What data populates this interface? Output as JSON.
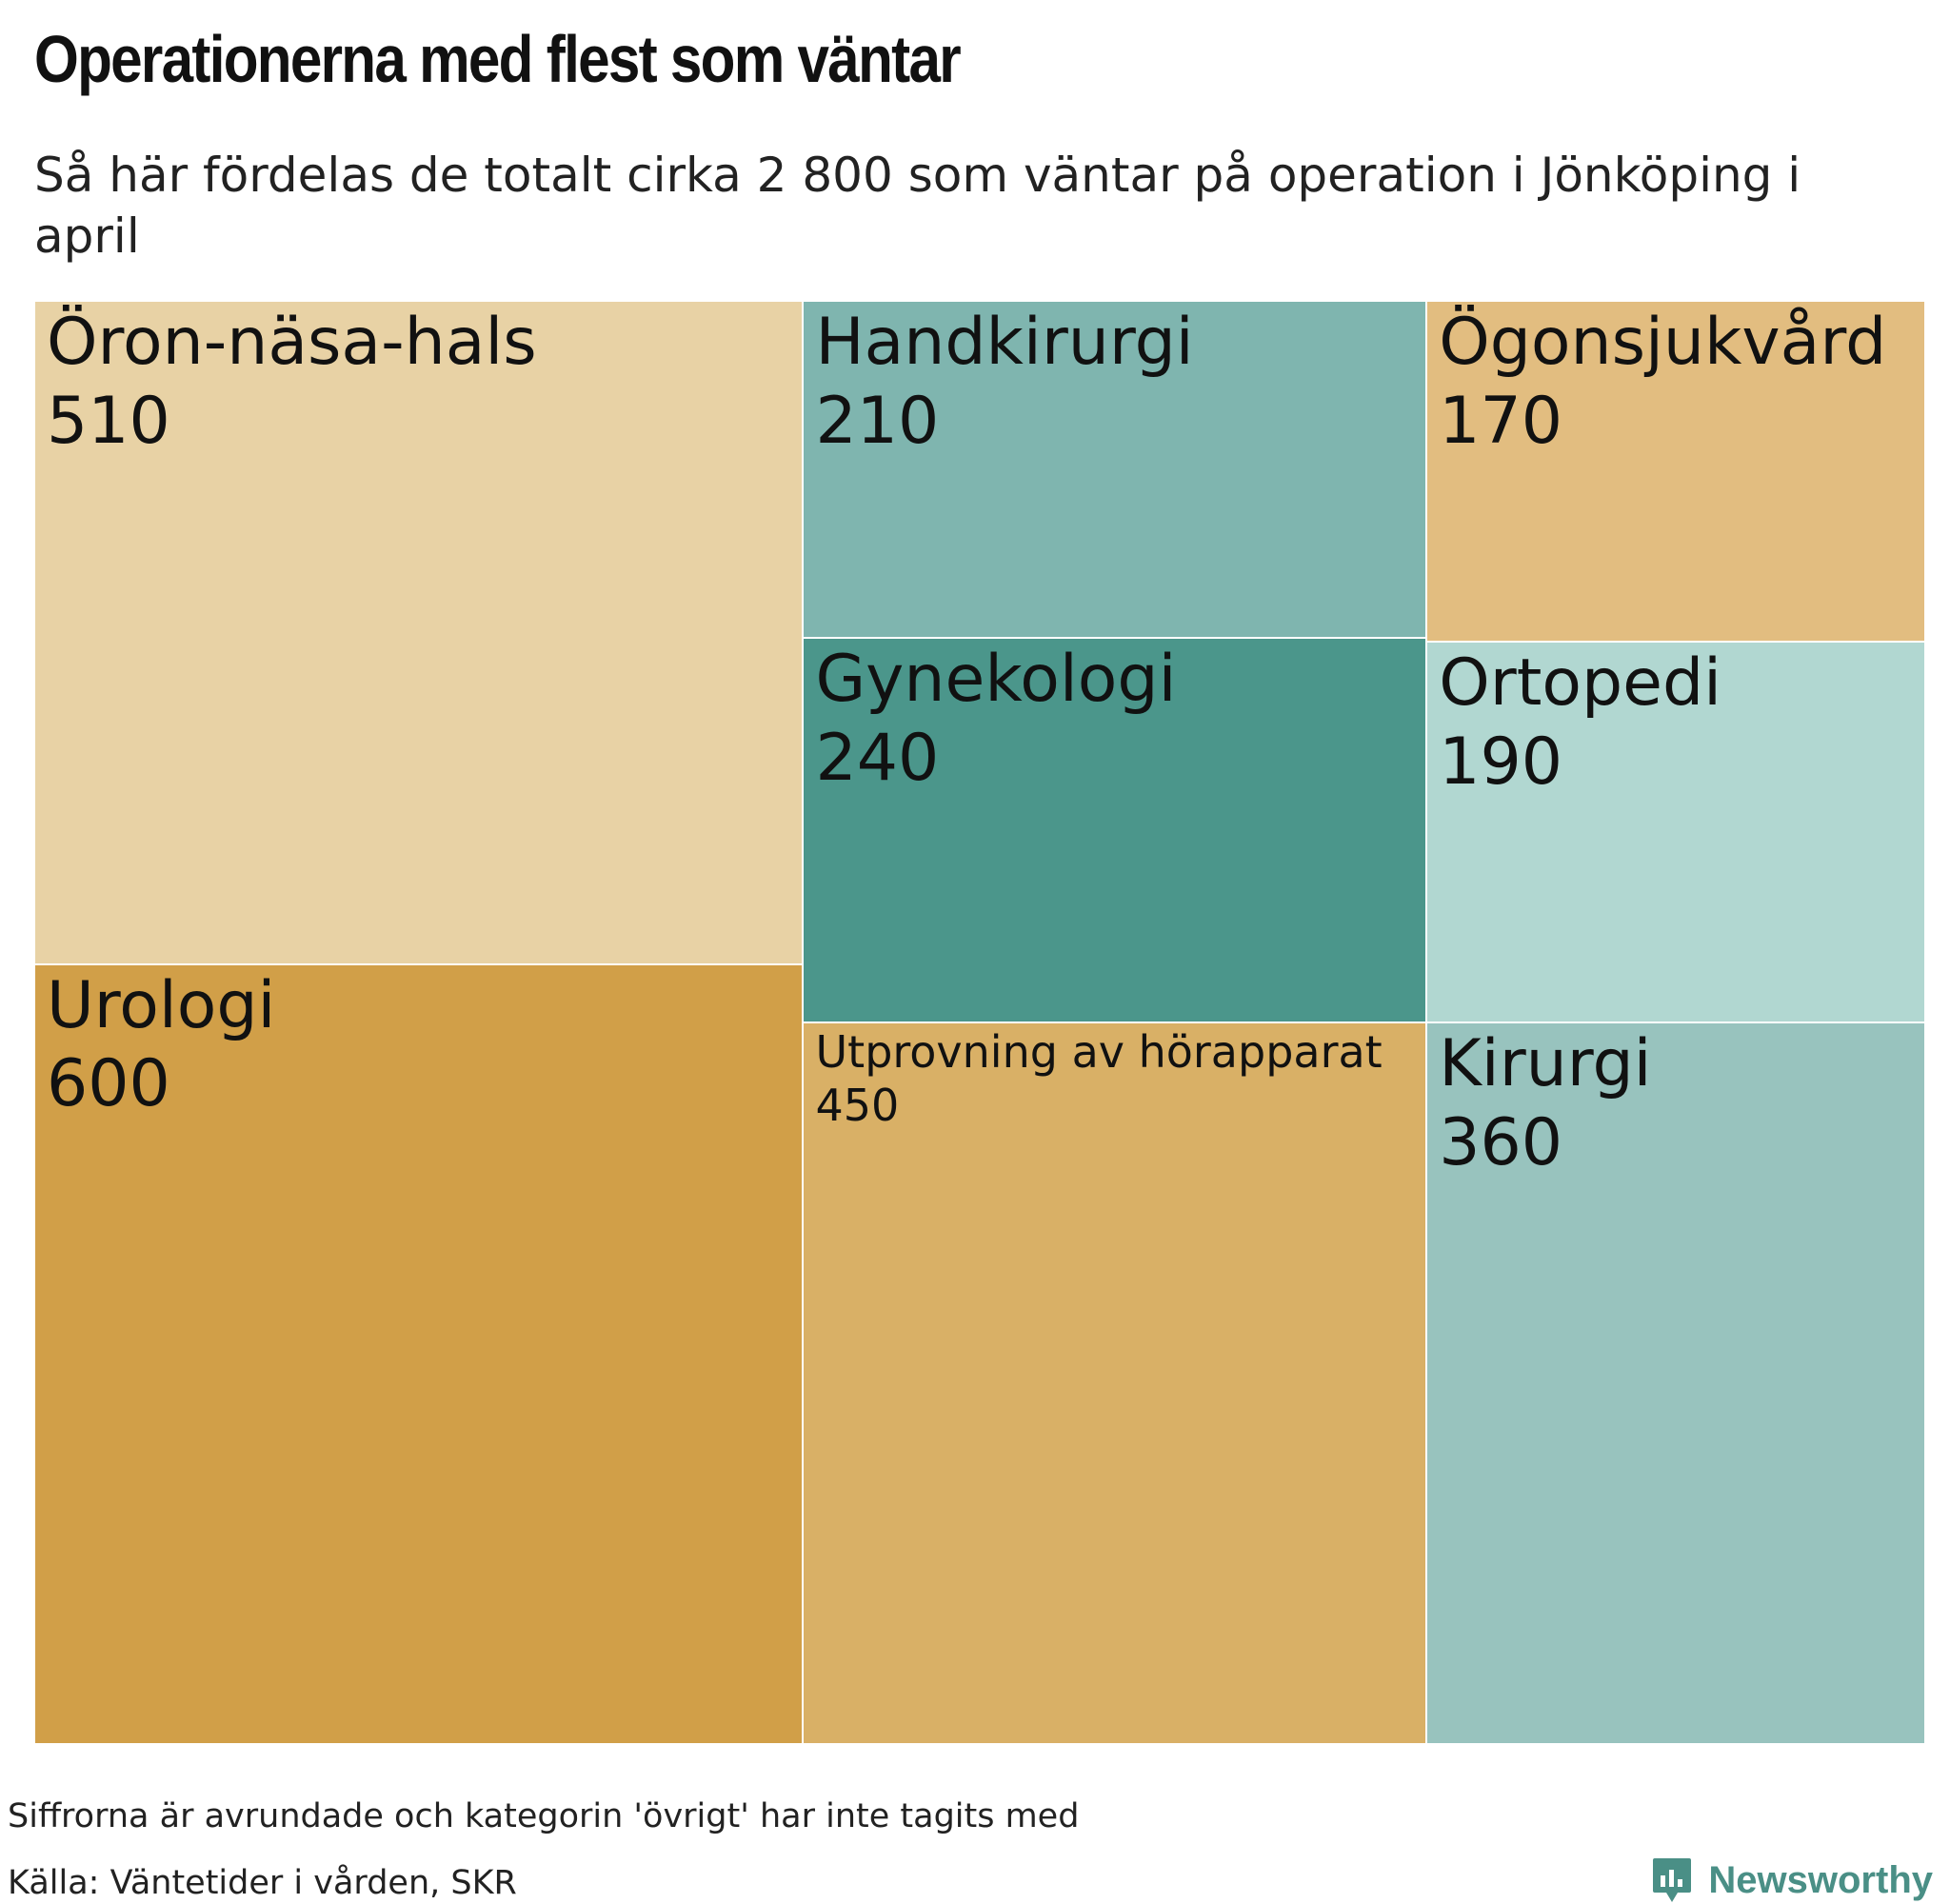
{
  "title": "Operationerna med flest som väntar",
  "subtitle": "Så här fördelas de totalt cirka 2 800 som väntar på operation i Jönköping i april",
  "note": "Siffrorna är avrundade och kategorin 'övrigt' har inte tagits med",
  "source": "Källa: Väntetider i vården, SKR",
  "brand": {
    "name": "Newsworthy",
    "icon": "newsworthy-logo-icon",
    "color": "#4a8f86"
  },
  "chart_data": {
    "type": "treemap",
    "title": "Operationerna med flest som väntar",
    "subtitle": "Så här fördelas de totalt cirka 2 800 som väntar på operation i Jönköping i april",
    "unit": "",
    "items": [
      {
        "name": "Öron-näsa-hals",
        "value": 510,
        "value_label": "510",
        "color": "#e8d2a5"
      },
      {
        "name": "Urologi",
        "value": 600,
        "value_label": "600",
        "color": "#d19f48"
      },
      {
        "name": "Handkirurgi",
        "value": 210,
        "value_label": "210",
        "color": "#7fb5af"
      },
      {
        "name": "Gynekologi",
        "value": 240,
        "value_label": "240",
        "color": "#4b968b"
      },
      {
        "name": "Utprovning av hörapparat",
        "value": 450,
        "value_label": "450",
        "color": "#d9b066"
      },
      {
        "name": "Ögonsjukvård",
        "value": 170,
        "value_label": "170",
        "color": "#e2bd80"
      },
      {
        "name": "Ortopedi",
        "value": 190,
        "value_label": "190",
        "color": "#b1d7d1"
      },
      {
        "name": "Kirurgi",
        "value": 360,
        "value_label": "360",
        "color": "#98c3be"
      }
    ]
  }
}
